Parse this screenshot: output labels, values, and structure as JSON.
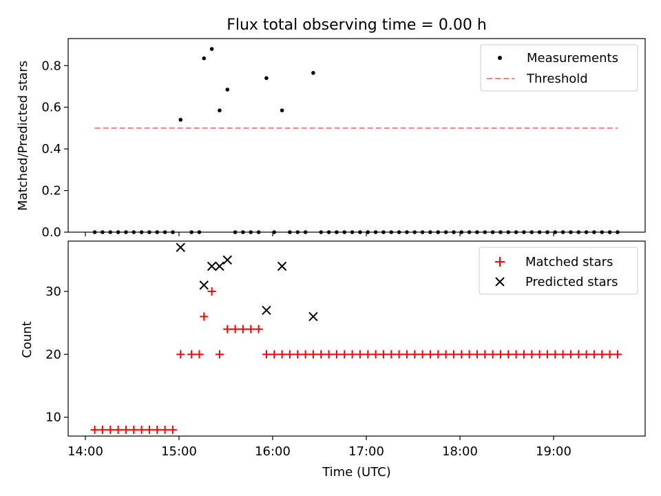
{
  "figure_title": "Flux total observing time = 0.00 h",
  "colors": {
    "measurement": "#000000",
    "threshold": "#ff7f7f",
    "matched": "#ff0000",
    "predicted": "#000000",
    "axes": "#000000"
  },
  "chart_data": [
    {
      "type": "scatter",
      "title": "Flux total observing time = 0.00 h",
      "xlabel": "",
      "ylabel": "Matched/Predicted stars",
      "xlim": [
        "14:00",
        "20:00"
      ],
      "ylim": [
        0,
        0.93
      ],
      "x_ticks": [
        "14:00",
        "15:00",
        "16:00",
        "17:00",
        "18:00",
        "19:00"
      ],
      "y_ticks": [
        0.0,
        0.2,
        0.4,
        0.6,
        0.8
      ],
      "y_tick_labels": [
        "0.0",
        "0.2",
        "0.4",
        "0.6",
        "0.8"
      ],
      "x_tick_labels_visible": false,
      "legend_position": "top-right",
      "series": [
        {
          "name": "Measurements",
          "marker": "dot",
          "x": [
            "14:06",
            "14:11",
            "14:16",
            "14:21",
            "14:26",
            "14:31",
            "14:36",
            "14:41",
            "14:46",
            "14:51",
            "14:56",
            "15:01",
            "15:08",
            "15:13",
            "15:16",
            "15:21",
            "15:26",
            "15:31",
            "15:36",
            "15:41",
            "15:46",
            "15:51",
            "15:56",
            "16:01",
            "16:06",
            "16:11",
            "16:16",
            "16:21",
            "16:26",
            "16:31",
            "16:36",
            "16:41",
            "16:46",
            "16:51",
            "16:56",
            "17:01",
            "17:06",
            "17:11",
            "17:16",
            "17:21",
            "17:26",
            "17:31",
            "17:36",
            "17:41",
            "17:46",
            "17:51",
            "17:56",
            "18:01",
            "18:06",
            "18:11",
            "18:16",
            "18:21",
            "18:26",
            "18:31",
            "18:36",
            "18:41",
            "18:46",
            "18:51",
            "18:56",
            "19:01",
            "19:06",
            "19:11",
            "19:16",
            "19:21",
            "19:26",
            "19:31",
            "19:36",
            "19:41"
          ],
          "y": [
            0,
            0,
            0,
            0,
            0,
            0,
            0,
            0,
            0,
            0,
            0,
            0.54,
            0,
            0,
            0.835,
            0.88,
            0.585,
            0.685,
            0,
            0,
            0,
            0,
            0.74,
            0,
            0.585,
            0,
            0,
            0,
            0.765,
            0,
            0,
            0,
            0,
            0,
            0,
            0,
            0,
            0,
            0,
            0,
            0,
            0,
            0,
            0,
            0,
            0,
            0,
            0,
            0,
            0,
            0,
            0,
            0,
            0,
            0,
            0,
            0,
            0,
            0,
            0,
            0,
            0,
            0,
            0,
            0,
            0,
            0,
            0
          ]
        },
        {
          "name": "Threshold",
          "style": "dashed",
          "x": [
            "14:06",
            "19:41"
          ],
          "y": [
            0.5,
            0.5
          ]
        }
      ]
    },
    {
      "type": "scatter",
      "title": "",
      "xlabel": "Time (UTC)",
      "ylabel": "Count",
      "xlim": [
        "14:00",
        "20:00"
      ],
      "ylim": [
        7,
        38
      ],
      "x_ticks": [
        "14:00",
        "15:00",
        "16:00",
        "17:00",
        "18:00",
        "19:00"
      ],
      "y_ticks": [
        10,
        20,
        30
      ],
      "y_tick_labels": [
        "10",
        "20",
        "30"
      ],
      "legend_position": "top-right",
      "series": [
        {
          "name": "Matched stars",
          "marker": "plus",
          "x": [
            "14:06",
            "14:11",
            "14:16",
            "14:21",
            "14:26",
            "14:31",
            "14:36",
            "14:41",
            "14:46",
            "14:51",
            "14:56",
            "15:01",
            "15:08",
            "15:13",
            "15:16",
            "15:21",
            "15:26",
            "15:31",
            "15:36",
            "15:41",
            "15:46",
            "15:51",
            "15:56",
            "16:01",
            "16:06",
            "16:11",
            "16:16",
            "16:21",
            "16:26",
            "16:31",
            "16:36",
            "16:41",
            "16:46",
            "16:51",
            "16:56",
            "17:01",
            "17:06",
            "17:11",
            "17:16",
            "17:21",
            "17:26",
            "17:31",
            "17:36",
            "17:41",
            "17:46",
            "17:51",
            "17:56",
            "18:01",
            "18:06",
            "18:11",
            "18:16",
            "18:21",
            "18:26",
            "18:31",
            "18:36",
            "18:41",
            "18:46",
            "18:51",
            "18:56",
            "19:01",
            "19:06",
            "19:11",
            "19:16",
            "19:21",
            "19:26",
            "19:31",
            "19:36",
            "19:41"
          ],
          "y": [
            8,
            8,
            8,
            8,
            8,
            8,
            8,
            8,
            8,
            8,
            8,
            20,
            20,
            20,
            26,
            30,
            20,
            24,
            24,
            24,
            24,
            24,
            20,
            20,
            20,
            20,
            20,
            20,
            20,
            20,
            20,
            20,
            20,
            20,
            20,
            20,
            20,
            20,
            20,
            20,
            20,
            20,
            20,
            20,
            20,
            20,
            20,
            20,
            20,
            20,
            20,
            20,
            20,
            20,
            20,
            20,
            20,
            20,
            20,
            20,
            20,
            20,
            20,
            20,
            20,
            20,
            20,
            20
          ]
        },
        {
          "name": "Predicted stars",
          "marker": "x",
          "x": [
            "15:01",
            "15:16",
            "15:21",
            "15:26",
            "15:31",
            "15:56",
            "16:06",
            "16:26"
          ],
          "y": [
            37,
            31,
            34,
            34,
            35,
            27,
            34,
            26
          ]
        }
      ]
    }
  ]
}
